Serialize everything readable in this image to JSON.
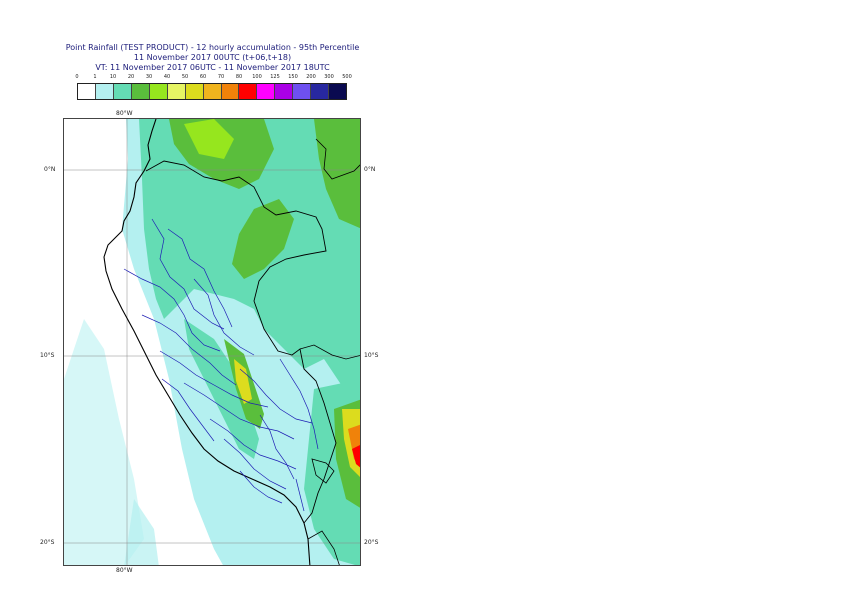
{
  "title": {
    "line1": "Point Rainfall (TEST PRODUCT) - 12 hourly accumulation - 95th Percentile",
    "line2": "11 November 2017 00UTC (t+06,t+18)",
    "line3": "VT: 11 November 2017 06UTC - 11 November 2017 18UTC"
  },
  "legend": {
    "ticks": [
      "0",
      "1",
      "10",
      "20",
      "30",
      "40",
      "50",
      "60",
      "70",
      "80",
      "100",
      "125",
      "150",
      "200",
      "300",
      "500"
    ],
    "colors": [
      "#ffffff",
      "#b4f0f0",
      "#64dcb4",
      "#5abe3c",
      "#96e61e",
      "#e6f564",
      "#dcdc1e",
      "#f0b41e",
      "#f0820a",
      "#ff0000",
      "#ff00ff",
      "#aa00e6",
      "#6e50f0",
      "#2828a0",
      "#0a0a50"
    ]
  },
  "axes": {
    "lon_top": "80°W",
    "lon_bottom": "80°W",
    "lat_left": [
      "0°N",
      "10°S",
      "20°S"
    ],
    "lat_right": [
      "0°N",
      "10°S",
      "20°S"
    ]
  },
  "map": {
    "sea_color": "#b4f0f0",
    "land_light_color": "#b4f0f0",
    "rain_10_color": "#64dcb4",
    "rain_20_color": "#5abe3c",
    "rain_30_color": "#96e61e",
    "rain_50_color": "#dcdc1e",
    "rain_70_color": "#f0820a",
    "rain_100_color": "#ff0000",
    "coast_color": "#000000",
    "border_color": "#000000",
    "region_color": "#1e1eb4"
  }
}
